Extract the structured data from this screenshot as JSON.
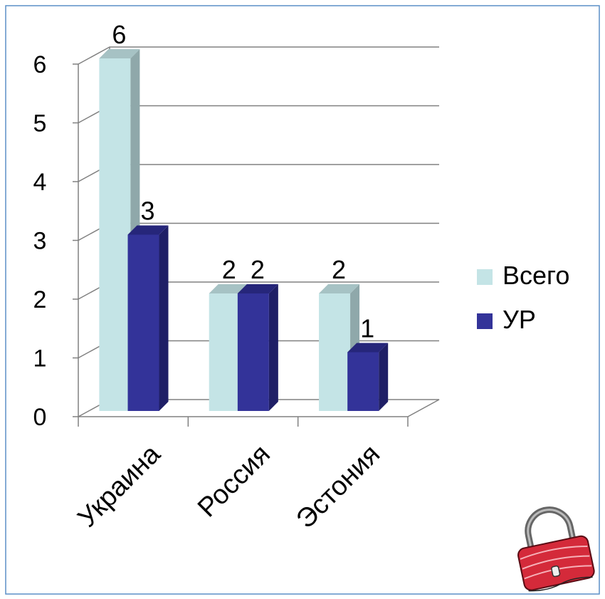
{
  "chart_data": {
    "type": "bar",
    "categories": [
      "Украина",
      "Россия",
      "Эстония"
    ],
    "series": [
      {
        "name": "Всего",
        "values": [
          6,
          2,
          2
        ],
        "color": "#c4e4e6",
        "side": "#8fa8aa",
        "top": "#a6c2c4"
      },
      {
        "name": "УР",
        "values": [
          3,
          2,
          1
        ],
        "color": "#333399",
        "side": "#1f1f66",
        "top": "#26267a"
      }
    ],
    "yticks": [
      "0",
      "1",
      "2",
      "3",
      "4",
      "5",
      "6"
    ],
    "ylim": [
      0,
      6
    ],
    "grid": true,
    "legend_position": "right",
    "data_labels": true,
    "title": "",
    "xlabel": "",
    "ylabel": ""
  },
  "colors": {
    "border": "#5b8fc7",
    "grid": "#808080",
    "lock": "#d42a3a"
  }
}
